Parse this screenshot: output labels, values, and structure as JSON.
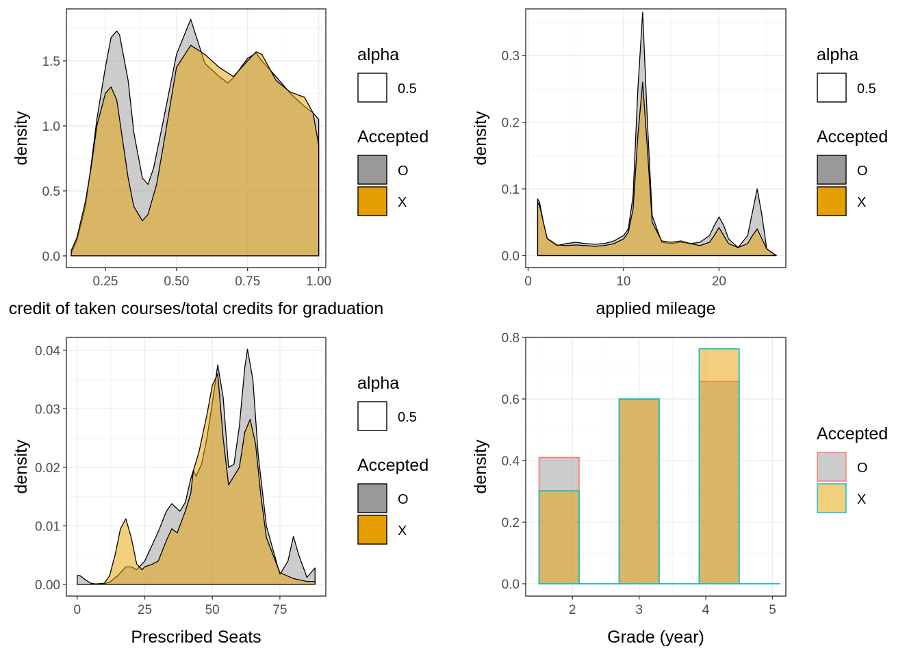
{
  "colors": {
    "O_fill": "#999999",
    "X_fill": "#E69F00",
    "O_outline": "#F8766D",
    "X_outline": "#00BFC4",
    "line": "#000000",
    "grid_major": "#EBEBEB",
    "grid_minor": "#F5F5F5"
  },
  "chart_data": [
    {
      "type": "area",
      "chart_subtype": "density",
      "xlabel": "credit of taken courses/total credits for graduation",
      "ylabel": "density",
      "xlim": [
        0.113,
        1.025
      ],
      "ylim": [
        -0.09,
        1.9
      ],
      "xticks": [
        0.25,
        0.5,
        0.75,
        1.0
      ],
      "xtick_labels": [
        "0.25",
        "0.50",
        "0.75",
        "1.00"
      ],
      "yticks": [
        0,
        0.5,
        1.0,
        1.5
      ],
      "ytick_labels": [
        "0.0",
        "0.5",
        "1.0",
        "1.5"
      ],
      "grid": true,
      "legend_position": "right",
      "legends": [
        {
          "title": "alpha",
          "items": [
            {
              "label": "0.5",
              "kind": "empty"
            }
          ]
        },
        {
          "title": "Accepted",
          "items": [
            {
              "label": "O",
              "kind": "O"
            },
            {
              "label": "X",
              "kind": "X"
            }
          ]
        }
      ],
      "series": [
        {
          "name": "O",
          "x": [
            0.13,
            0.15,
            0.18,
            0.2,
            0.22,
            0.25,
            0.27,
            0.29,
            0.3,
            0.33,
            0.35,
            0.38,
            0.4,
            0.42,
            0.45,
            0.5,
            0.55,
            0.6,
            0.65,
            0.68,
            0.7,
            0.75,
            0.78,
            0.8,
            0.85,
            0.9,
            0.95,
            0.98,
            1.0
          ],
          "y": [
            0.02,
            0.12,
            0.38,
            0.7,
            1.05,
            1.45,
            1.68,
            1.73,
            1.7,
            1.35,
            0.95,
            0.6,
            0.55,
            0.68,
            1.0,
            1.55,
            1.82,
            1.48,
            1.38,
            1.33,
            1.37,
            1.52,
            1.56,
            1.5,
            1.38,
            1.25,
            1.15,
            1.1,
            1.05
          ]
        },
        {
          "name": "X",
          "x": [
            0.13,
            0.15,
            0.18,
            0.2,
            0.22,
            0.25,
            0.27,
            0.29,
            0.31,
            0.33,
            0.35,
            0.38,
            0.4,
            0.43,
            0.45,
            0.5,
            0.55,
            0.6,
            0.65,
            0.7,
            0.75,
            0.78,
            0.8,
            0.85,
            0.9,
            0.95,
            0.98,
            1.0
          ],
          "y": [
            0.04,
            0.14,
            0.42,
            0.68,
            1.0,
            1.25,
            1.3,
            1.2,
            0.9,
            0.6,
            0.38,
            0.27,
            0.32,
            0.55,
            0.8,
            1.45,
            1.62,
            1.55,
            1.45,
            1.38,
            1.5,
            1.57,
            1.55,
            1.35,
            1.26,
            1.22,
            1.1,
            0.85
          ]
        }
      ]
    },
    {
      "type": "area",
      "chart_subtype": "density",
      "xlabel": "applied mileage",
      "ylabel": "density",
      "xlim": [
        -0.25,
        27.0
      ],
      "ylim": [
        -0.018,
        0.37
      ],
      "xticks": [
        0,
        10,
        20
      ],
      "xtick_labels": [
        "0",
        "10",
        "20"
      ],
      "yticks": [
        0,
        0.1,
        0.2,
        0.3
      ],
      "ytick_labels": [
        "0.0",
        "0.1",
        "0.2",
        "0.3"
      ],
      "grid": true,
      "legend_position": "right",
      "legends": [
        {
          "title": "alpha",
          "items": [
            {
              "label": "0.5",
              "kind": "empty"
            }
          ]
        },
        {
          "title": "Accepted",
          "items": [
            {
              "label": "O",
              "kind": "O"
            },
            {
              "label": "X",
              "kind": "X"
            }
          ]
        }
      ],
      "series": [
        {
          "name": "O",
          "x": [
            1,
            1.2,
            1.6,
            2,
            3,
            4,
            5,
            6,
            7,
            8,
            9,
            10,
            10.5,
            11,
            11.5,
            12,
            12.5,
            13,
            14,
            15,
            16,
            17,
            18,
            19,
            19.5,
            20,
            20.5,
            21,
            22,
            23,
            23.5,
            24,
            24.5,
            25,
            26
          ],
          "y": [
            0.085,
            0.08,
            0.05,
            0.025,
            0.015,
            0.018,
            0.02,
            0.018,
            0.017,
            0.018,
            0.022,
            0.03,
            0.04,
            0.09,
            0.25,
            0.365,
            0.2,
            0.06,
            0.02,
            0.018,
            0.02,
            0.018,
            0.02,
            0.03,
            0.045,
            0.058,
            0.045,
            0.025,
            0.012,
            0.03,
            0.065,
            0.1,
            0.06,
            0.01,
            0.0
          ]
        },
        {
          "name": "X",
          "x": [
            1,
            1.2,
            1.6,
            2,
            3,
            4,
            5,
            6,
            7,
            8,
            9,
            10,
            10.5,
            11,
            11.5,
            12,
            12.5,
            13,
            14,
            15,
            16,
            17,
            18,
            19,
            19.5,
            20,
            20.5,
            21,
            22,
            23,
            23.5,
            24,
            24.5,
            25,
            26
          ],
          "y": [
            0.08,
            0.075,
            0.05,
            0.026,
            0.016,
            0.015,
            0.016,
            0.015,
            0.014,
            0.015,
            0.018,
            0.025,
            0.035,
            0.07,
            0.18,
            0.26,
            0.16,
            0.05,
            0.022,
            0.02,
            0.022,
            0.018,
            0.015,
            0.02,
            0.03,
            0.042,
            0.03,
            0.018,
            0.012,
            0.018,
            0.03,
            0.04,
            0.025,
            0.01,
            0.0
          ]
        }
      ]
    },
    {
      "type": "area",
      "chart_subtype": "density",
      "xlabel": "Prescribed Seats",
      "ylabel": "density",
      "xlim": [
        -4.0,
        92.0
      ],
      "ylim": [
        -0.002,
        0.0422
      ],
      "xticks": [
        0,
        25,
        50,
        75
      ],
      "xtick_labels": [
        "0",
        "25",
        "50",
        "75"
      ],
      "yticks": [
        0,
        0.01,
        0.02,
        0.03,
        0.04
      ],
      "ytick_labels": [
        "0.00",
        "0.01",
        "0.02",
        "0.03",
        "0.04"
      ],
      "grid": true,
      "legend_position": "right",
      "legends": [
        {
          "title": "alpha",
          "items": [
            {
              "label": "0.5",
              "kind": "empty"
            }
          ]
        },
        {
          "title": "Accepted",
          "items": [
            {
              "label": "O",
              "kind": "O"
            },
            {
              "label": "X",
              "kind": "X"
            }
          ]
        }
      ],
      "series": [
        {
          "name": "O",
          "x": [
            0,
            1,
            3,
            5,
            8,
            10,
            12,
            15,
            18,
            20,
            22,
            25,
            28,
            30,
            33,
            35,
            38,
            40,
            42,
            43,
            44,
            46,
            48,
            50,
            52,
            54,
            56,
            58,
            60,
            62,
            63,
            65,
            67,
            70,
            75,
            78,
            80,
            82,
            85,
            88
          ],
          "y": [
            0.0015,
            0.0015,
            0.0008,
            0.0002,
            0.0,
            0.0001,
            0.0004,
            0.0015,
            0.003,
            0.003,
            0.0025,
            0.004,
            0.007,
            0.009,
            0.0125,
            0.0138,
            0.0125,
            0.014,
            0.018,
            0.0195,
            0.0185,
            0.0205,
            0.025,
            0.031,
            0.0375,
            0.032,
            0.02,
            0.0205,
            0.027,
            0.037,
            0.0402,
            0.035,
            0.022,
            0.01,
            0.0017,
            0.004,
            0.0082,
            0.005,
            0.0012,
            0.0028
          ]
        },
        {
          "name": "X",
          "x": [
            0,
            5,
            10,
            12,
            14,
            16,
            18,
            20,
            22,
            24,
            25,
            28,
            30,
            33,
            35,
            37,
            40,
            42,
            43,
            45,
            48,
            50,
            52,
            54,
            56,
            58,
            60,
            62,
            64,
            66,
            68,
            70,
            75,
            80,
            85,
            88
          ],
          "y": [
            0.0,
            0.0,
            0.0002,
            0.0015,
            0.005,
            0.0095,
            0.0112,
            0.008,
            0.0035,
            0.0025,
            0.003,
            0.0035,
            0.004,
            0.0075,
            0.0095,
            0.0088,
            0.0125,
            0.0155,
            0.0195,
            0.0225,
            0.029,
            0.034,
            0.036,
            0.025,
            0.017,
            0.0185,
            0.02,
            0.026,
            0.0282,
            0.024,
            0.015,
            0.008,
            0.002,
            0.001,
            0.0005,
            0.0005
          ]
        }
      ]
    },
    {
      "type": "bar",
      "chart_subtype": "histogram",
      "xlabel": "Grade (year)",
      "ylabel": "density",
      "xlim": [
        1.3,
        5.2
      ],
      "ylim": [
        -0.04,
        0.8
      ],
      "xticks": [
        2,
        3,
        4,
        5
      ],
      "xtick_labels": [
        "2",
        "3",
        "4",
        "5"
      ],
      "yticks": [
        0,
        0.2,
        0.4,
        0.6,
        0.8
      ],
      "ytick_labels": [
        "0.0",
        "0.2",
        "0.4",
        "0.6",
        "0.8"
      ],
      "grid": true,
      "legend_position": "right",
      "legends": [
        {
          "title": "Accepted",
          "items": [
            {
              "label": "O",
              "kind": "hO"
            },
            {
              "label": "X",
              "kind": "hX"
            }
          ]
        }
      ],
      "bin_edges": [
        1.5,
        2.1,
        2.7,
        3.3,
        3.9,
        4.5,
        5.1
      ],
      "series": [
        {
          "name": "O",
          "values": [
            0.41,
            0,
            0.6,
            0,
            0.657,
            0
          ]
        },
        {
          "name": "X",
          "values": [
            0.302,
            0,
            0.6,
            0,
            0.763,
            0
          ]
        }
      ]
    }
  ]
}
